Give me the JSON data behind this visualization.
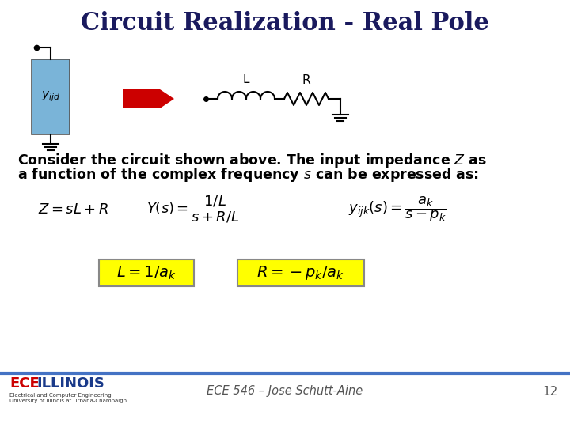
{
  "title": "Circuit Realization - Real Pole",
  "title_color": "#1a1a5e",
  "title_fontsize": 22,
  "bg_color": "#ffffff",
  "body_line1": "Consider the circuit shown above. The input impedance $Z$ as",
  "body_line2": "a function of the complex frequency $s$ can be expressed as:",
  "body_fontsize": 12.5,
  "eq1": "$Z = sL + R$",
  "eq2": "$Y(s) = \\dfrac{1/L}{s + R/L}$",
  "eq3": "$y_{ijk}(s) = \\dfrac{a_k}{s - p_k}$",
  "highlight1": "$L = 1/a_k$",
  "highlight2": "$R = -p_k / a_k$",
  "highlight_bg": "#ffff00",
  "highlight_fontsize": 14,
  "eq_fontsize": 13,
  "footer_text": "ECE 546 – Jose Schutt-Aine",
  "footer_page": "12",
  "footer_color": "#555555",
  "line_color": "#4472c4",
  "box_color": "#7ab4d8",
  "arrow_color": "#cc0000",
  "ece_color1": "#cc0000",
  "ece_color2": "#1a3a8a"
}
